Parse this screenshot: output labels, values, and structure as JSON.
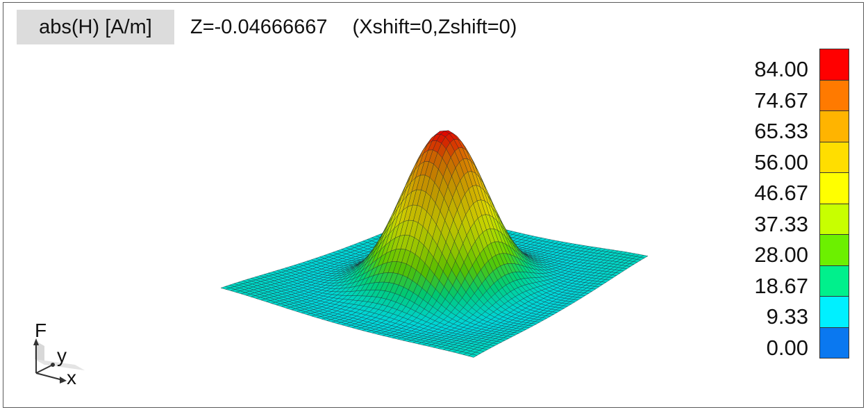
{
  "header": {
    "quantity": "abs(H) [A/m]",
    "z_label": "Z=-0.04666667",
    "shift_label": "(Xshift=0,Zshift=0)"
  },
  "legend": {
    "labels": [
      "84.00",
      "74.67",
      "65.33",
      "56.00",
      "46.67",
      "37.33",
      "28.00",
      "18.67",
      "9.33",
      "0.00"
    ],
    "colors": [
      "#ff0000",
      "#ff7a00",
      "#ffb400",
      "#ffde00",
      "#ffff00",
      "#c8ff00",
      "#6cf000",
      "#00f08c",
      "#00f0ff",
      "#0a78f0"
    ]
  },
  "axes_triad": {
    "vertical": "F",
    "depth": "y",
    "horizontal": "x"
  },
  "chart_data": {
    "type": "surface",
    "title": "abs(H) [A/m]",
    "quantity": "abs(H)",
    "z_max": 84.0,
    "z_min": 0.0,
    "colorbar_ticks": [
      84.0,
      74.67,
      65.33,
      56.0,
      46.67,
      37.33,
      28.0,
      18.67,
      9.33,
      0.0
    ],
    "grid": "on",
    "legend_position": "right"
  }
}
